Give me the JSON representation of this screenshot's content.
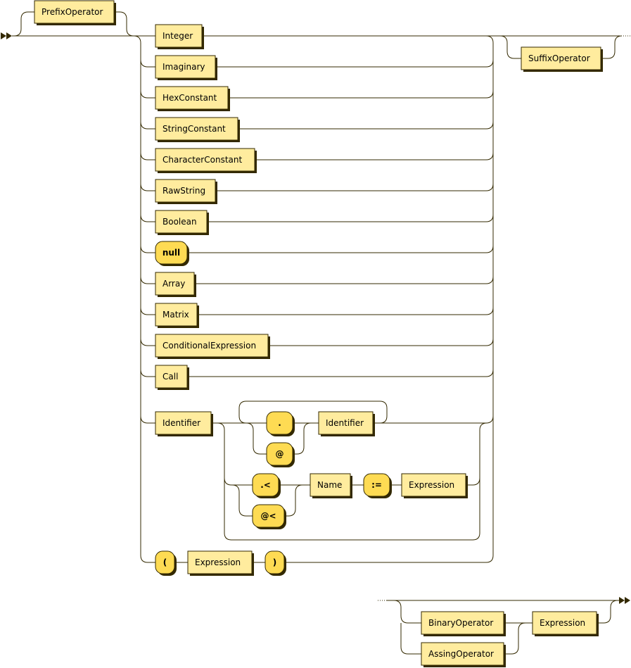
{
  "diagram": {
    "type": "railroad",
    "colors": {
      "nonterminal_fill": "#FFEC9E",
      "terminal_fill": "#FEDB53",
      "stroke": "#332900"
    },
    "nodes": [
      {
        "label": "PrefixOperator",
        "kind": "nonterminal"
      },
      {
        "label": "Integer",
        "kind": "nonterminal"
      },
      {
        "label": "Imaginary",
        "kind": "nonterminal"
      },
      {
        "label": "HexConstant",
        "kind": "nonterminal"
      },
      {
        "label": "StringConstant",
        "kind": "nonterminal"
      },
      {
        "label": "CharacterConstant",
        "kind": "nonterminal"
      },
      {
        "label": "RawString",
        "kind": "nonterminal"
      },
      {
        "label": "Boolean",
        "kind": "nonterminal"
      },
      {
        "label": "null",
        "kind": "terminal"
      },
      {
        "label": "Array",
        "kind": "nonterminal"
      },
      {
        "label": "Matrix",
        "kind": "nonterminal"
      },
      {
        "label": "ConditionalExpression",
        "kind": "nonterminal"
      },
      {
        "label": "Call",
        "kind": "nonterminal"
      },
      {
        "label": "Identifier",
        "kind": "nonterminal"
      },
      {
        "label": ".",
        "kind": "terminal"
      },
      {
        "label": "@",
        "kind": "terminal"
      },
      {
        "label": "Identifier",
        "kind": "nonterminal"
      },
      {
        "label": ".<",
        "kind": "terminal"
      },
      {
        "label": "@<",
        "kind": "terminal"
      },
      {
        "label": "Name",
        "kind": "nonterminal"
      },
      {
        "label": ":=",
        "kind": "terminal"
      },
      {
        "label": "Expression",
        "kind": "nonterminal"
      },
      {
        "label": "(",
        "kind": "terminal"
      },
      {
        "label": "Expression",
        "kind": "nonterminal"
      },
      {
        "label": ")",
        "kind": "terminal"
      },
      {
        "label": "SuffixOperator",
        "kind": "nonterminal"
      },
      {
        "label": "BinaryOperator",
        "kind": "nonterminal"
      },
      {
        "label": "AssingOperator",
        "kind": "nonterminal"
      },
      {
        "label": "Expression",
        "kind": "nonterminal"
      }
    ]
  }
}
